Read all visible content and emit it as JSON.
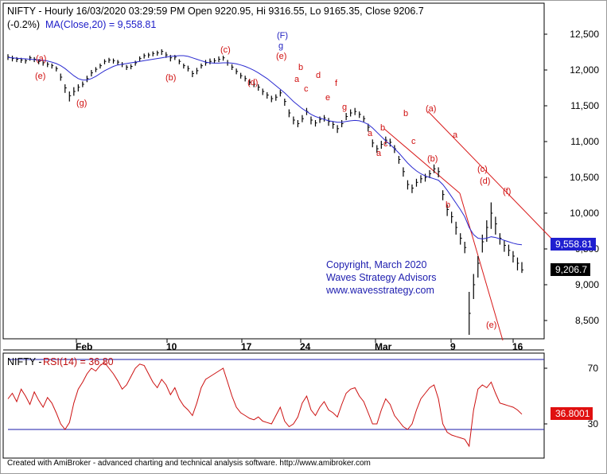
{
  "header": {
    "title_line": "NIFTY - Hourly 16/03/2020 03:29:59 PM Open 9220.95, Hi 9316.55, Lo 9165.35, Close 9206.7",
    "ma_change": "(-0.2%)",
    "ma_label": "MA(Close,20) = 9,558.81"
  },
  "rsi_header": {
    "prefix": "NIFTY - ",
    "label": "RSI(14) = 36.80"
  },
  "copyright": {
    "line1": "Copyright, March 2020",
    "line2": "Waves Strategy Advisors",
    "line3": "www.wavesstrategy.com"
  },
  "footer": "Created with AmiBroker - advanced charting and technical analysis software. http://www.amibroker.com",
  "colors": {
    "price_bars": "#000000",
    "moving_average": "#2a2ad0",
    "trendlines": "#d81818",
    "wave_labels": "#d01010",
    "rsi_line": "#cc1010",
    "rsi_levels": "#1a1aa8"
  },
  "tags": {
    "ma_value": "9,558.81",
    "close_value": "9,206.7",
    "rsi_value": "36.8001"
  },
  "chart_data": [
    {
      "type": "ohlc_line",
      "title": "NIFTY - Hourly",
      "x_ticks": [
        "Feb",
        "10",
        "17",
        "24",
        "Mar",
        "9",
        "16"
      ],
      "y_ticks": [
        "12,500",
        "12,000",
        "11,500",
        "11,000",
        "10,500",
        "10,000",
        "9,500",
        "9,000",
        "8,500"
      ],
      "ylim": [
        8150,
        12800
      ],
      "series": [
        {
          "name": "NIFTY",
          "style": "bars",
          "values": [
            12180,
            12160,
            12150,
            12140,
            12130,
            12170,
            12150,
            12120,
            12100,
            12080,
            12060,
            12020,
            11900,
            11750,
            11640,
            11700,
            11760,
            11800,
            11880,
            11960,
            12010,
            12060,
            12120,
            12140,
            12130,
            12110,
            12080,
            12040,
            12050,
            12100,
            12160,
            12200,
            12210,
            12230,
            12240,
            12260,
            12210,
            12170,
            12180,
            12120,
            12060,
            12020,
            11950,
            11990,
            12060,
            12100,
            12120,
            12130,
            12150,
            12170,
            12100,
            12040,
            11980,
            11920,
            11880,
            11830,
            11800,
            11760,
            11700,
            11650,
            11600,
            11620,
            11680,
            11560,
            11400,
            11300,
            11250,
            11320,
            11420,
            11300,
            11260,
            11310,
            11330,
            11280,
            11240,
            11180,
            11250,
            11350,
            11400,
            11420,
            11380,
            11320,
            11200,
            10980,
            10900,
            10960,
            11020,
            10990,
            10900,
            10750,
            10580,
            10400,
            10350,
            10430,
            10480,
            10500,
            10550,
            10620,
            10580,
            10260,
            10050,
            9950,
            9800,
            9650,
            9520,
            8600,
            9000,
            9300,
            9600,
            9800,
            10000,
            9850,
            9650,
            9550,
            9480,
            9400,
            9300,
            9207
          ],
          "highs": [
            12220,
            12200,
            12180,
            12170,
            12160,
            12200,
            12180,
            12150,
            12130,
            12110,
            12090,
            12050,
            11950,
            11800,
            11700,
            11760,
            11800,
            11840,
            11920,
            12000,
            12040,
            12090,
            12150,
            12170,
            12160,
            12140,
            12110,
            12070,
            12080,
            12130,
            12190,
            12230,
            12240,
            12260,
            12270,
            12290,
            12250,
            12210,
            12210,
            12150,
            12090,
            12060,
            11990,
            12030,
            12090,
            12140,
            12160,
            12165,
            12190,
            12200,
            12140,
            12080,
            12020,
            11960,
            11920,
            11870,
            11840,
            11800,
            11740,
            11690,
            11640,
            11660,
            11720,
            11600,
            11450,
            11350,
            11300,
            11370,
            11470,
            11350,
            11300,
            11350,
            11370,
            11330,
            11280,
            11230,
            11300,
            11400,
            11450,
            11470,
            11420,
            11360,
            11250,
            11030,
            10950,
            11010,
            11070,
            11040,
            10950,
            10800,
            10640,
            10460,
            10400,
            10480,
            10530,
            10550,
            10600,
            10680,
            10640,
            10320,
            10120,
            10020,
            9880,
            9720,
            9600,
            8900,
            9150,
            9400,
            9700,
            9900,
            10150,
            9950,
            9720,
            9620,
            9560,
            9470,
            9380,
            9316
          ],
          "lows": [
            12140,
            12120,
            12110,
            12100,
            12090,
            12130,
            12110,
            12080,
            12060,
            12040,
            12020,
            11980,
            11850,
            11680,
            11560,
            11640,
            11700,
            11760,
            11830,
            11910,
            11970,
            12020,
            12080,
            12100,
            12090,
            12070,
            12040,
            12000,
            12010,
            12060,
            12120,
            12160,
            12170,
            12190,
            12200,
            12210,
            12170,
            12120,
            12140,
            12080,
            12020,
            11980,
            11900,
            11940,
            12020,
            12060,
            12080,
            12090,
            12110,
            12130,
            12060,
            12000,
            11940,
            11880,
            11840,
            11790,
            11760,
            11710,
            11650,
            11600,
            11550,
            11570,
            11630,
            11500,
            11340,
            11240,
            11200,
            11270,
            11370,
            11240,
            11210,
            11260,
            11280,
            11220,
            11180,
            11120,
            11200,
            11300,
            11350,
            11370,
            11330,
            11270,
            11140,
            10920,
            10840,
            10900,
            10960,
            10930,
            10840,
            10690,
            10510,
            10330,
            10280,
            10370,
            10420,
            10440,
            10490,
            10560,
            10500,
            10180,
            9960,
            9860,
            9700,
            9560,
            9440,
            8300,
            8800,
            9100,
            9450,
            9600,
            9780,
            9700,
            9560,
            9460,
            9400,
            9310,
            9200,
            9165
          ]
        },
        {
          "name": "MA(Close,20)",
          "style": "line",
          "values": [
            12175,
            12170,
            12165,
            12160,
            12155,
            12150,
            12145,
            12140,
            12135,
            12125,
            12110,
            12090,
            12060,
            12020,
            11970,
            11920,
            11880,
            11860,
            11860,
            11880,
            11910,
            11950,
            11990,
            12020,
            12050,
            12070,
            12080,
            12090,
            12100,
            12110,
            12120,
            12130,
            12140,
            12150,
            12160,
            12170,
            12180,
            12190,
            12195,
            12200,
            12200,
            12190,
            12170,
            12150,
            12130,
            12110,
            12100,
            12095,
            12095,
            12100,
            12100,
            12095,
            12085,
            12070,
            12050,
            12025,
            11995,
            11960,
            11920,
            11880,
            11830,
            11780,
            11730,
            11680,
            11620,
            11560,
            11510,
            11460,
            11420,
            11380,
            11350,
            11330,
            11310,
            11290,
            11280,
            11270,
            11270,
            11280,
            11290,
            11295,
            11290,
            11270,
            11240,
            11190,
            11130,
            11070,
            11010,
            10960,
            10900,
            10840,
            10770,
            10700,
            10640,
            10590,
            10550,
            10520,
            10500,
            10480,
            10460,
            10400,
            10320,
            10230,
            10140,
            10050,
            9950,
            9800,
            9700,
            9650,
            9640,
            9650,
            9670,
            9660,
            9640,
            9620,
            9600,
            9580,
            9565,
            9559
          ]
        }
      ],
      "annotations": [
        "(e)",
        "(g)",
        "(b)",
        "(c)",
        "(d)",
        "(a)",
        "(F)",
        "g",
        "(e)",
        "a",
        "b",
        "c",
        "d",
        "e",
        "f",
        "g",
        "a",
        "b",
        "c",
        "a",
        "b",
        "c",
        "(a)",
        "(b)",
        "a",
        "b",
        "(c)",
        "(d)",
        "(e)",
        "(f)"
      ]
    },
    {
      "type": "line",
      "title": "NIFTY - RSI(14)",
      "y_ticks": [
        "70",
        "30"
      ],
      "ylim": [
        10,
        80
      ],
      "levels": [
        75,
        27
      ],
      "series": [
        {
          "name": "RSI(14)",
          "values": [
            48,
            52,
            46,
            55,
            50,
            44,
            53,
            47,
            42,
            49,
            45,
            38,
            30,
            26,
            31,
            45,
            55,
            60,
            66,
            70,
            68,
            72,
            74,
            70,
            66,
            61,
            55,
            58,
            64,
            70,
            73,
            72,
            66,
            60,
            56,
            62,
            58,
            51,
            56,
            48,
            43,
            40,
            36,
            45,
            56,
            62,
            64,
            66,
            68,
            70,
            60,
            50,
            42,
            38,
            36,
            34,
            33,
            35,
            32,
            31,
            30,
            36,
            42,
            32,
            28,
            30,
            35,
            45,
            50,
            40,
            36,
            42,
            46,
            40,
            38,
            35,
            44,
            52,
            55,
            56,
            50,
            46,
            38,
            30,
            30,
            40,
            48,
            44,
            36,
            32,
            28,
            26,
            30,
            40,
            48,
            52,
            56,
            58,
            48,
            30,
            24,
            22,
            21,
            20,
            19,
            14,
            40,
            55,
            58,
            56,
            60,
            52,
            45,
            44,
            43,
            42,
            40,
            37
          ]
        }
      ]
    }
  ]
}
